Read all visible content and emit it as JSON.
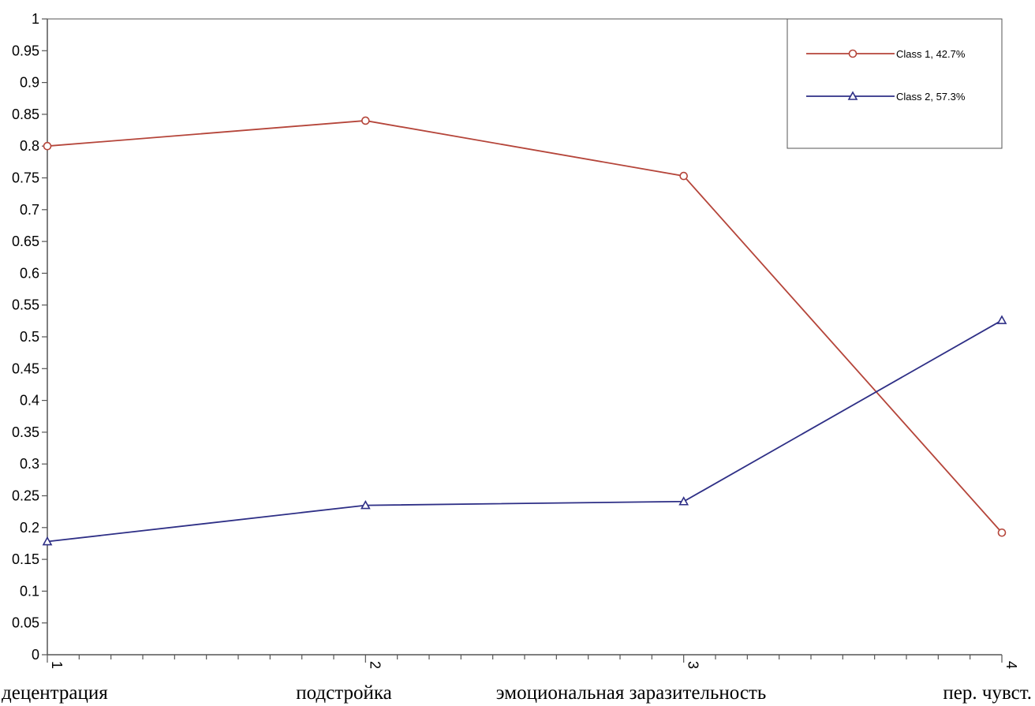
{
  "chart_data": {
    "type": "line",
    "x": [
      1,
      2,
      3,
      4
    ],
    "x_tick_labels": [
      "1",
      "2",
      "3",
      "4"
    ],
    "category_labels": [
      "децентрация",
      "подстройка",
      "эмоциональная заразительность",
      "пер. чувст."
    ],
    "y_tick_labels": [
      "0",
      "0.05",
      "0.1",
      "0.15",
      "0.2",
      "0.25",
      "0.3",
      "0.35",
      "0.4",
      "0.45",
      "0.5",
      "0.55",
      "0.6",
      "0.65",
      "0.7",
      "0.75",
      "0.8",
      "0.85",
      "0.9",
      "0.95",
      "1"
    ],
    "ylim": [
      0,
      1
    ],
    "xlim": [
      1,
      4
    ],
    "grid": false,
    "legend_position": "top-right",
    "series": [
      {
        "name": "Class 1, 42.7%",
        "values": [
          0.8,
          0.84,
          0.753,
          0.192
        ],
        "color": "#b5453a",
        "marker": "circle"
      },
      {
        "name": "Class 2, 57.3%",
        "values": [
          0.178,
          0.235,
          0.241,
          0.526
        ],
        "color": "#2e2f86",
        "marker": "triangle"
      }
    ]
  }
}
